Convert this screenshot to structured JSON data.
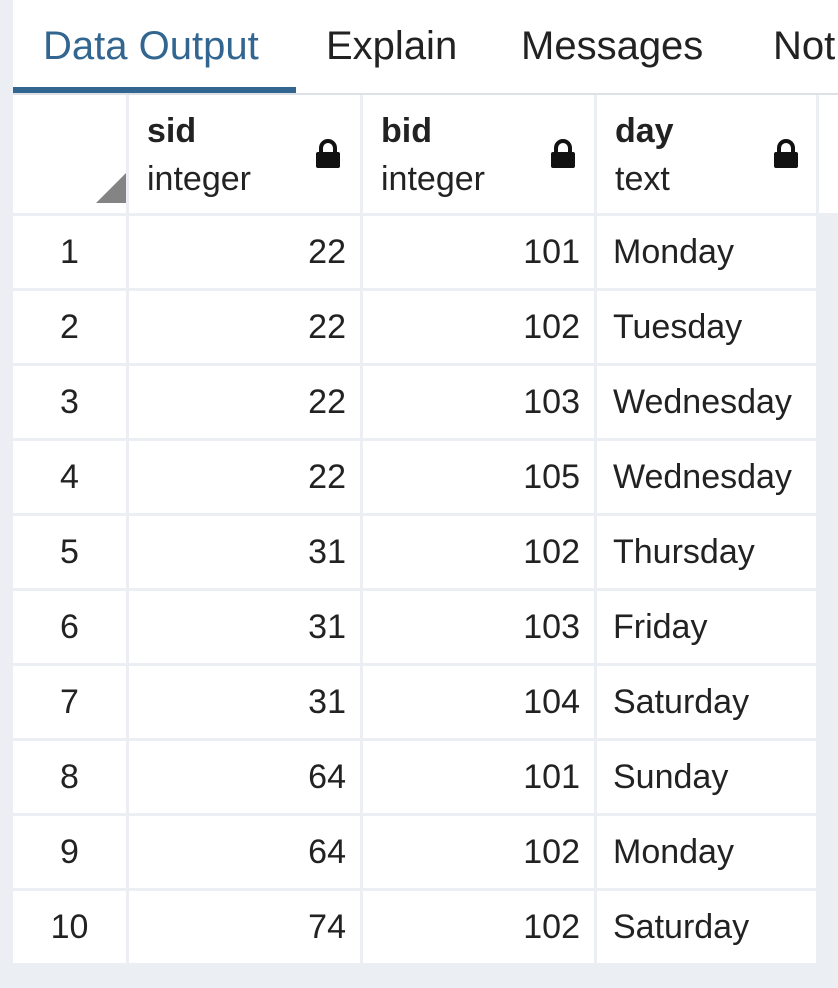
{
  "tabs": [
    {
      "label": "Data Output",
      "active": true
    },
    {
      "label": "Explain",
      "active": false
    },
    {
      "label": "Messages",
      "active": false
    },
    {
      "label": "Notifications",
      "active": false
    }
  ],
  "tab_truncated_label": "Not",
  "columns": [
    {
      "name": "sid",
      "type": "integer",
      "locked": true
    },
    {
      "name": "bid",
      "type": "integer",
      "locked": true
    },
    {
      "name": "day",
      "type": "text",
      "locked": true
    }
  ],
  "rows": [
    {
      "num": "1",
      "sid": "22",
      "bid": "101",
      "day": "Monday"
    },
    {
      "num": "2",
      "sid": "22",
      "bid": "102",
      "day": "Tuesday"
    },
    {
      "num": "3",
      "sid": "22",
      "bid": "103",
      "day": "Wednesday"
    },
    {
      "num": "4",
      "sid": "22",
      "bid": "105",
      "day": "Wednesday"
    },
    {
      "num": "5",
      "sid": "31",
      "bid": "102",
      "day": "Thursday"
    },
    {
      "num": "6",
      "sid": "31",
      "bid": "103",
      "day": "Friday"
    },
    {
      "num": "7",
      "sid": "31",
      "bid": "104",
      "day": "Saturday"
    },
    {
      "num": "8",
      "sid": "64",
      "bid": "101",
      "day": "Sunday"
    },
    {
      "num": "9",
      "sid": "64",
      "bid": "102",
      "day": "Monday"
    },
    {
      "num": "10",
      "sid": "74",
      "bid": "102",
      "day": "Saturday"
    }
  ],
  "colors": {
    "accent": "#326690",
    "grid_bg": "#ebeef3",
    "corner_triangle": "#848484"
  },
  "icons": {
    "lock": "lock-icon",
    "sort_corner": "select-all-corner-icon"
  }
}
